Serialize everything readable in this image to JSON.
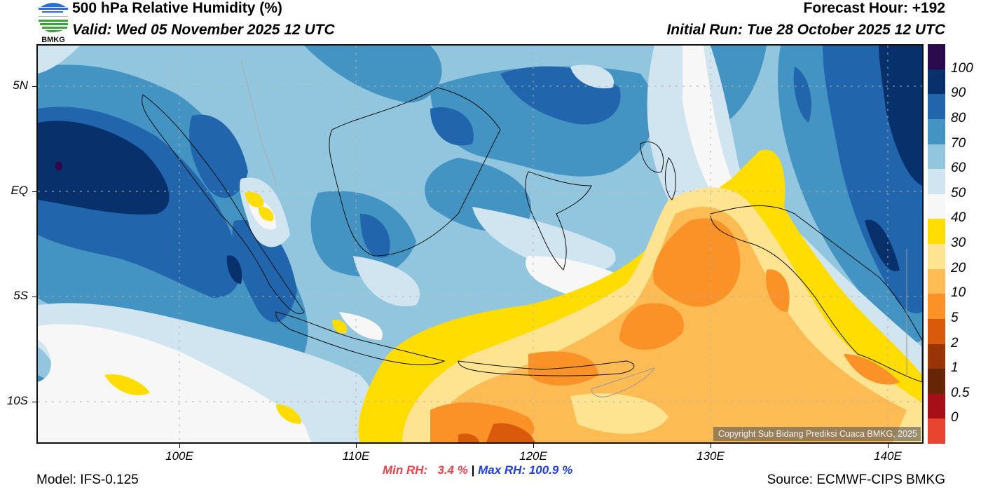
{
  "header": {
    "title": "500 hPa Relative Humidity (%)",
    "valid": "Valid: Wed 05 November 2025 12 UTC",
    "forecast_hour": "Forecast Hour: +192",
    "initial_run": "Initial Run: Tue 28 October 2025 12 UTC",
    "logo_text": "BMKG"
  },
  "map": {
    "y_axis_labels": [
      "5N",
      "EQ",
      "5S",
      "10S"
    ],
    "x_axis_labels": [
      "100E",
      "110E",
      "120E",
      "130E",
      "140E"
    ],
    "copyright": "Copyright Sub Bidang Prediksi Cuaca BMKG, 2025"
  },
  "colorbar": {
    "labels": [
      "100",
      "90",
      "80",
      "70",
      "60",
      "50",
      "40",
      "30",
      "20",
      "10",
      "5",
      "2",
      "1",
      "0.5",
      "0"
    ],
    "colors": [
      "#2c0a4e",
      "#08306b",
      "#2166ac",
      "#4393c3",
      "#92c5de",
      "#d1e5f0",
      "#f7f7f7",
      "#ffdd00",
      "#fee391",
      "#fdbb54",
      "#fb9228",
      "#d95a0a",
      "#993404",
      "#662506",
      "#a50f15",
      "#e8432e"
    ]
  },
  "footer": {
    "model": "Model: IFS-0.125",
    "min_rh": "Min RH:   3.4 %",
    "separator": "|",
    "max_rh": "Max RH: 100.9 %",
    "source": "Source: ECMWF-CIPS BMKG"
  }
}
